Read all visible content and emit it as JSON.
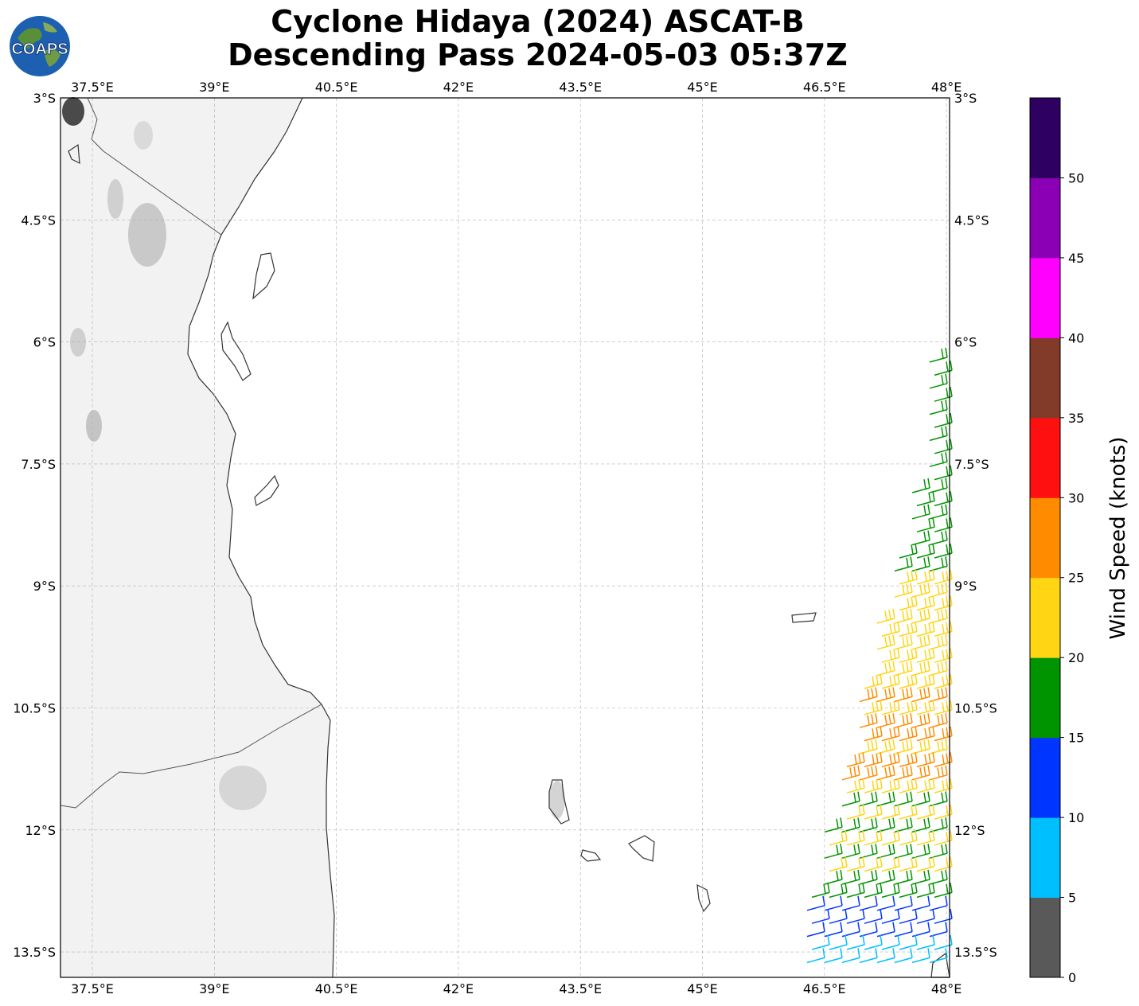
{
  "title": {
    "line1": "Cyclone Hidaya (2024) ASCAT-B",
    "line2": "Descending Pass 2024-05-03 05:37Z"
  },
  "logo_text": "COAPS",
  "map": {
    "lon_ticks": [
      "37.5°E",
      "39°E",
      "40.5°E",
      "42°E",
      "43.5°E",
      "45°E",
      "46.5°E",
      "48°E"
    ],
    "lat_ticks": [
      "3°S",
      "4.5°S",
      "6°S",
      "7.5°S",
      "9°S",
      "10.5°S",
      "12°S",
      "13.5°S"
    ],
    "background": "#ffffff",
    "land_shading": "#f2f2f2",
    "coastline_color": "#333333",
    "grid_style": "dashed"
  },
  "colorbar": {
    "label": "Wind Speed (knots)",
    "ticks": [
      "0",
      "5",
      "10",
      "15",
      "20",
      "25",
      "30",
      "35",
      "40",
      "45",
      "50"
    ],
    "colors": [
      "#595959",
      "#00bfff",
      "#0035ff",
      "#009500",
      "#ffd514",
      "#ff8c00",
      "#ff1010",
      "#823b28",
      "#ff00ff",
      "#8b00b4",
      "#2d0062"
    ]
  },
  "wind_speed_colors": {
    "calm": "#595959",
    "5-10": "#00bfff",
    "10-15": "#0035ff",
    "15-20": "#009500",
    "20-25": "#ffd514",
    "25-30": "#ff8c00"
  }
}
